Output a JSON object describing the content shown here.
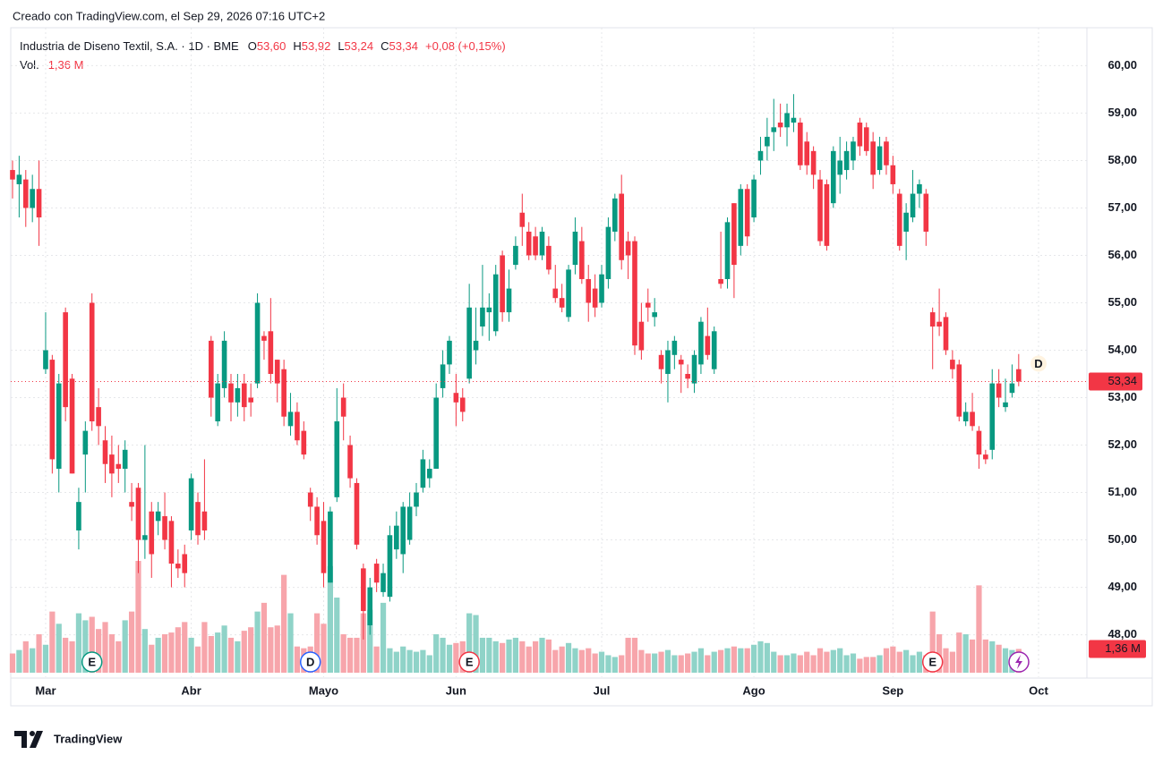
{
  "header": {
    "created": "Creado con TradingView.com, el Sep 29, 2026 07:16 UTC+2"
  },
  "footer": {
    "brand": "TradingView"
  },
  "chart_data": {
    "type": "candlestick",
    "title": "Industria de Diseno Textil, S.A. · 1D · BME",
    "legend": {
      "o": "O",
      "o_value": "53,60",
      "h": "H",
      "h_value": "53,92",
      "l": "L",
      "l_value": "53,24",
      "c": "C",
      "c_value": "53,34",
      "change": "+0,08 (+0,15%)"
    },
    "volume_label": "Vol.",
    "volume_value": "1,36 M",
    "last_price_label": "53,34",
    "up_color": "#089981",
    "down_color": "#f23645",
    "up_volume_color": "#8fd3c8",
    "down_volume_color": "#f7a5ab",
    "ylim": [
      47.2,
      60.8
    ],
    "yticks": [
      {
        "value": 48,
        "label": "48,00"
      },
      {
        "value": 49,
        "label": "49,00"
      },
      {
        "value": 50,
        "label": "50,00"
      },
      {
        "value": 51,
        "label": "51,00"
      },
      {
        "value": 52,
        "label": "52,00"
      },
      {
        "value": 53,
        "label": "53,00"
      },
      {
        "value": 54,
        "label": "54,00"
      },
      {
        "value": 55,
        "label": "55,00"
      },
      {
        "value": 56,
        "label": "56,00"
      },
      {
        "value": 57,
        "label": "57,00"
      },
      {
        "value": 58,
        "label": "58,00"
      },
      {
        "value": 59,
        "label": "59,00"
      },
      {
        "value": 60,
        "label": "60,00"
      }
    ],
    "grid": true,
    "categories": [
      null,
      null,
      null,
      null,
      null,
      "Mar",
      null,
      null,
      null,
      null,
      null,
      null,
      null,
      null,
      null,
      null,
      null,
      null,
      null,
      null,
      null,
      null,
      null,
      null,
      null,
      null,
      null,
      "Abr",
      null,
      null,
      null,
      null,
      null,
      null,
      null,
      null,
      null,
      null,
      null,
      null,
      null,
      null,
      null,
      null,
      null,
      null,
      null,
      "Mayo",
      null,
      null,
      null,
      null,
      null,
      null,
      null,
      null,
      null,
      null,
      null,
      null,
      null,
      null,
      null,
      null,
      null,
      null,
      null,
      "Jun",
      null,
      null,
      null,
      null,
      null,
      null,
      null,
      null,
      null,
      null,
      null,
      null,
      null,
      null,
      null,
      null,
      null,
      null,
      null,
      null,
      null,
      "Jul",
      null,
      null,
      null,
      null,
      null,
      null,
      null,
      null,
      null,
      null,
      null,
      null,
      null,
      null,
      null,
      null,
      null,
      null,
      null,
      null,
      null,
      null,
      "Ago",
      null,
      null,
      null,
      null,
      null,
      null,
      null,
      null,
      null,
      null,
      null,
      null,
      null,
      null,
      null,
      null,
      null,
      null,
      null,
      null,
      "Sep",
      null,
      null,
      null,
      null,
      null,
      null,
      null,
      null,
      null,
      null,
      null,
      null,
      null,
      null,
      null,
      null,
      null,
      null,
      null,
      null,
      null,
      "Oct"
    ],
    "open": [
      57.8,
      57.5,
      57.6,
      57.0,
      57.4,
      53.6,
      53.8,
      51.5,
      54.8,
      53.4,
      50.2,
      51.8,
      55.0,
      52.8,
      52.1,
      51.8,
      51.6,
      51.5,
      50.8,
      51.1,
      50.0,
      50.6,
      50.4,
      50.5,
      50.4,
      49.5,
      49.7,
      50.2,
      50.8,
      50.6,
      54.2,
      52.5,
      53.2,
      53.3,
      52.9,
      53.3,
      53.0,
      53.3,
      54.3,
      54.4,
      53.8,
      53.6,
      52.4,
      52.7,
      52.3,
      51.0,
      50.7,
      50.4,
      49.1,
      50.9,
      53.0,
      52.0,
      51.2,
      49.4,
      48.2,
      49.5,
      48.9,
      48.8,
      49.8,
      49.7,
      50.0,
      50.7,
      51.1,
      51.3,
      51.5,
      53.2,
      53.7,
      53.1,
      53.0,
      53.4,
      54.0,
      54.5,
      54.8,
      54.4,
      56.0,
      54.8,
      55.8,
      56.9,
      56.5,
      56.4,
      56.0,
      56.2,
      55.3,
      55.1,
      54.7,
      55.8,
      56.3,
      55.5,
      55.3,
      55.0,
      55.5,
      56.5,
      57.3,
      56.3,
      56.3,
      54.6,
      55.0,
      54.7,
      53.9,
      53.5,
      53.9,
      53.8,
      53.5,
      53.3,
      53.7,
      54.3,
      53.6,
      55.5,
      55.5,
      57.1,
      56.2,
      57.4,
      56.8,
      58.0,
      58.3,
      58.6,
      58.8,
      58.7,
      58.8,
      58.8,
      58.4,
      58.2,
      57.6,
      57.5,
      57.1,
      57.7,
      57.8,
      58.0,
      58.8,
      58.7,
      58.4,
      57.8,
      58.4,
      57.9,
      57.3,
      56.5,
      56.8,
      57.3,
      57.3,
      54.8,
      54.6,
      54.7,
      53.8,
      53.7,
      52.5,
      52.7,
      52.3,
      51.8,
      51.9,
      53.3,
      52.8,
      53.1,
      53.6,
      null,
      null,
      null
    ],
    "high": [
      58.0,
      58.1,
      57.8,
      57.7,
      58.0,
      54.8,
      53.9,
      53.5,
      54.9,
      53.5,
      51.1,
      52.5,
      55.2,
      53.2,
      52.4,
      52.2,
      52.0,
      52.1,
      51.2,
      51.2,
      52.0,
      50.8,
      50.8,
      51.0,
      50.5,
      49.8,
      49.9,
      51.4,
      51.0,
      51.7,
      54.3,
      53.5,
      54.4,
      53.5,
      53.5,
      53.5,
      53.3,
      55.2,
      54.4,
      55.1,
      53.8,
      53.8,
      53.1,
      52.9,
      52.5,
      51.1,
      50.9,
      50.8,
      50.7,
      53.2,
      53.3,
      52.2,
      51.3,
      49.5,
      49.2,
      49.6,
      49.5,
      50.3,
      50.6,
      50.8,
      51.0,
      51.2,
      51.9,
      51.7,
      53.3,
      54.0,
      54.3,
      53.5,
      53.2,
      55.4,
      54.9,
      55.8,
      55.2,
      55.8,
      56.1,
      55.7,
      56.4,
      57.3,
      56.7,
      56.6,
      56.6,
      56.4,
      55.8,
      55.4,
      55.8,
      56.8,
      56.6,
      55.8,
      55.6,
      55.8,
      56.8,
      57.3,
      57.7,
      56.5,
      56.4,
      55.0,
      55.3,
      55.1,
      54.0,
      54.2,
      54.3,
      53.9,
      53.7,
      54.0,
      54.7,
      54.9,
      54.5,
      56.5,
      56.8,
      57.1,
      57.5,
      57.5,
      57.7,
      58.5,
      58.9,
      59.3,
      59.2,
      59.2,
      59.4,
      58.9,
      58.6,
      58.3,
      57.8,
      57.6,
      58.3,
      58.5,
      58.4,
      58.5,
      58.9,
      58.8,
      58.6,
      58.5,
      58.5,
      58.1,
      57.4,
      57.1,
      57.8,
      57.6,
      57.4,
      54.9,
      55.3,
      54.8,
      54.0,
      53.8,
      52.9,
      53.1,
      52.4,
      51.9,
      53.6,
      53.6,
      53.4,
      53.7,
      53.92,
      null,
      null,
      null
    ],
    "low": [
      57.2,
      56.8,
      56.6,
      56.7,
      56.2,
      53.5,
      51.4,
      51.0,
      52.5,
      51.4,
      49.8,
      51.0,
      52.3,
      52.0,
      51.2,
      50.9,
      51.2,
      51.0,
      50.4,
      49.3,
      49.6,
      49.2,
      50.1,
      49.8,
      49.0,
      49.2,
      49.0,
      50.0,
      49.9,
      50.0,
      52.6,
      52.4,
      53.0,
      52.5,
      52.6,
      52.5,
      52.6,
      53.2,
      53.8,
      53.3,
      52.9,
      52.4,
      52.2,
      52.0,
      51.7,
      50.4,
      49.9,
      49.0,
      49.1,
      50.8,
      52.1,
      51.1,
      49.8,
      47.9,
      48.0,
      48.9,
      48.8,
      48.7,
      49.6,
      49.3,
      49.9,
      50.5,
      51.0,
      51.1,
      51.5,
      53.0,
      53.5,
      52.4,
      52.5,
      53.3,
      53.7,
      54.3,
      54.2,
      54.3,
      54.6,
      54.6,
      55.7,
      56.2,
      55.9,
      55.9,
      55.9,
      55.6,
      55.0,
      54.8,
      54.6,
      55.6,
      55.4,
      54.6,
      54.7,
      54.9,
      55.3,
      56.3,
      55.7,
      55.5,
      53.9,
      53.8,
      54.6,
      54.5,
      53.3,
      52.9,
      53.6,
      53.1,
      53.2,
      53.1,
      53.5,
      53.8,
      53.5,
      55.3,
      55.3,
      55.1,
      56.0,
      56.2,
      56.7,
      57.7,
      58.0,
      58.2,
      58.5,
      58.3,
      58.6,
      57.8,
      57.7,
      57.4,
      56.2,
      56.1,
      57.0,
      57.3,
      57.6,
      57.8,
      58.1,
      58.1,
      57.4,
      57.7,
      57.7,
      57.3,
      56.1,
      55.9,
      56.7,
      57.0,
      56.2,
      53.6,
      54.3,
      53.9,
      53.4,
      52.5,
      52.4,
      52.3,
      51.5,
      51.6,
      51.7,
      52.8,
      52.7,
      53.0,
      53.24,
      null,
      null,
      null
    ],
    "close": [
      57.6,
      57.7,
      57.0,
      57.4,
      56.8,
      54.0,
      51.7,
      53.3,
      52.8,
      51.4,
      50.8,
      52.3,
      52.5,
      52.4,
      51.6,
      51.4,
      51.5,
      51.9,
      50.7,
      50.0,
      50.1,
      49.7,
      50.6,
      50.0,
      49.5,
      49.4,
      49.3,
      51.3,
      50.1,
      50.2,
      53.0,
      53.3,
      54.2,
      52.9,
      53.2,
      52.8,
      52.9,
      55.0,
      54.2,
      53.5,
      53.3,
      52.6,
      52.7,
      52.1,
      51.8,
      50.7,
      50.1,
      49.3,
      50.6,
      52.5,
      52.6,
      51.3,
      49.9,
      48.5,
      49.0,
      49.1,
      49.3,
      50.1,
      50.3,
      50.7,
      50.7,
      51.0,
      51.7,
      51.5,
      53.0,
      53.7,
      54.2,
      52.9,
      52.7,
      54.9,
      54.2,
      54.9,
      54.9,
      55.6,
      54.8,
      55.3,
      56.2,
      56.6,
      56.0,
      56.0,
      56.5,
      55.7,
      55.1,
      54.9,
      55.7,
      56.5,
      55.5,
      55.0,
      54.9,
      55.6,
      56.6,
      57.2,
      55.9,
      56.0,
      54.1,
      54.0,
      54.9,
      54.8,
      53.6,
      54.0,
      54.2,
      53.7,
      53.4,
      53.9,
      54.6,
      53.9,
      54.4,
      55.4,
      56.7,
      55.8,
      57.4,
      56.4,
      57.6,
      58.2,
      58.5,
      58.7,
      58.7,
      59.0,
      58.9,
      57.9,
      57.9,
      57.7,
      56.3,
      56.2,
      58.2,
      58.0,
      58.2,
      58.4,
      58.3,
      58.2,
      57.7,
      58.3,
      57.9,
      57.5,
      56.2,
      56.9,
      57.3,
      57.5,
      56.5,
      54.5,
      54.5,
      54.0,
      53.6,
      52.6,
      52.7,
      52.4,
      51.8,
      51.7,
      53.3,
      53.0,
      52.9,
      53.3,
      53.34,
      null,
      null,
      null
    ],
    "volume": [
      1.1,
      1.3,
      1.8,
      1.4,
      2.2,
      1.6,
      3.5,
      2.8,
      2.0,
      1.8,
      3.4,
      3.0,
      3.2,
      2.5,
      2.9,
      2.2,
      1.8,
      3.0,
      3.5,
      6.4,
      2.5,
      1.6,
      2.0,
      2.2,
      2.3,
      2.6,
      2.9,
      2.0,
      1.5,
      2.9,
      2.1,
      2.3,
      2.7,
      2.0,
      1.8,
      2.4,
      2.6,
      3.5,
      4.0,
      2.6,
      2.7,
      5.6,
      3.4,
      1.5,
      1.4,
      1.5,
      3.4,
      2.8,
      6.1,
      4.3,
      2.2,
      2.0,
      2.0,
      3.4,
      3.6,
      1.5,
      4.0,
      1.4,
      1.2,
      1.5,
      1.3,
      1.2,
      1.3,
      1.0,
      2.2,
      2.0,
      1.6,
      1.7,
      1.8,
      3.4,
      3.3,
      2.0,
      2.0,
      1.8,
      1.7,
      1.9,
      2.0,
      1.8,
      1.5,
      1.8,
      2.0,
      1.9,
      1.3,
      1.5,
      1.7,
      1.4,
      1.3,
      1.4,
      1.1,
      1.2,
      1.0,
      0.9,
      1.0,
      2.0,
      2.0,
      1.3,
      1.1,
      1.1,
      1.2,
      1.3,
      1.0,
      1.0,
      1.1,
      1.2,
      1.4,
      1.0,
      1.2,
      1.3,
      1.4,
      1.5,
      1.4,
      1.4,
      1.6,
      1.8,
      1.7,
      1.2,
      1.0,
      1.0,
      1.1,
      1.0,
      1.2,
      1.0,
      1.4,
      1.2,
      1.3,
      1.4,
      1.0,
      1.1,
      0.8,
      0.9,
      0.9,
      1.0,
      1.4,
      1.5,
      1.2,
      1.3,
      1.0,
      1.2,
      1.0,
      3.5,
      2.2,
      1.4,
      1.2,
      2.3,
      2.2,
      1.9,
      5.0,
      1.9,
      1.8,
      1.6,
      1.4,
      1.3,
      1.36,
      null,
      null,
      null
    ],
    "events": [
      {
        "label": "E",
        "at": 12,
        "color": "#089981"
      },
      {
        "label": "D",
        "at": 45,
        "color": "#2962ff"
      },
      {
        "label": "E",
        "at": 69,
        "color": "#f23645"
      },
      {
        "label": "E",
        "at": 139,
        "color": "#f23645"
      }
    ],
    "upcoming": {
      "label": "D",
      "at": 155,
      "color": "#ff9800"
    }
  }
}
